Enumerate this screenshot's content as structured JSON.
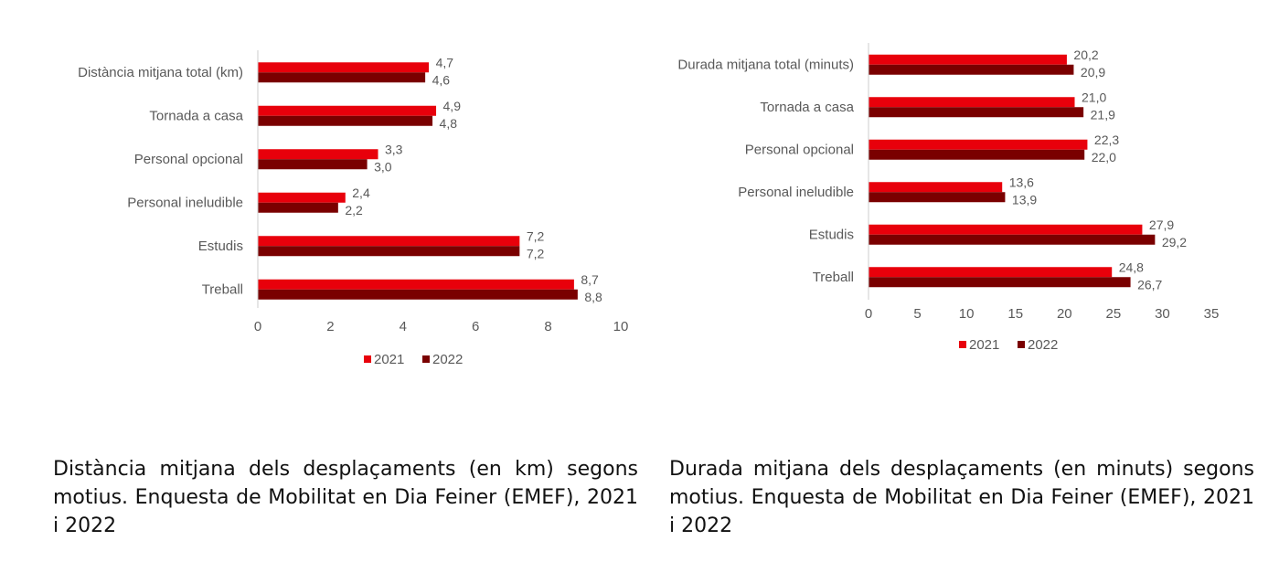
{
  "colors": {
    "y2021": "#e8000b",
    "y2022": "#7a0000",
    "axis": "#cccccc",
    "label": "#595959"
  },
  "chart_data": [
    {
      "type": "bar",
      "orientation": "horizontal",
      "categories": [
        "Distància mitjana total (km)",
        "Tornada a casa",
        "Personal opcional",
        "Personal ineludible",
        "Estudis",
        "Treball"
      ],
      "series": [
        {
          "name": "2021",
          "values": [
            4.7,
            4.9,
            3.3,
            2.4,
            7.2,
            8.7
          ],
          "labels": [
            "4,7",
            "4,9",
            "3,3",
            "2,4",
            "7,2",
            "8,7"
          ]
        },
        {
          "name": "2022",
          "values": [
            4.6,
            4.8,
            3.0,
            2.2,
            7.2,
            8.8
          ],
          "labels": [
            "4,6",
            "4,8",
            "3,0",
            "2,2",
            "7,2",
            "8,8"
          ]
        }
      ],
      "xlim": [
        0,
        10
      ],
      "ticks": [
        0,
        2,
        4,
        6,
        8,
        10
      ],
      "legend": "bottom",
      "caption": "Distància mitjana dels desplaçaments (en km) segons motius. Enquesta de Mobilitat en Dia Feiner (EMEF), 2021 i 2022"
    },
    {
      "type": "bar",
      "orientation": "horizontal",
      "categories": [
        "Durada mitjana total (minuts)",
        "Tornada a casa",
        "Personal opcional",
        "Personal ineludible",
        "Estudis",
        "Treball"
      ],
      "series": [
        {
          "name": "2021",
          "values": [
            20.2,
            21.0,
            22.3,
            13.6,
            27.9,
            24.8
          ],
          "labels": [
            "20,2",
            "21,0",
            "22,3",
            "13,6",
            "27,9",
            "24,8"
          ]
        },
        {
          "name": "2022",
          "values": [
            20.9,
            21.9,
            22.0,
            13.9,
            29.2,
            26.7
          ],
          "labels": [
            "20,9",
            "21,9",
            "22,0",
            "13,9",
            "29,2",
            "26,7"
          ]
        }
      ],
      "xlim": [
        0,
        35
      ],
      "ticks": [
        0,
        5,
        10,
        15,
        20,
        25,
        30,
        35
      ],
      "legend": "bottom",
      "caption": "Durada mitjana dels desplaçaments (en minuts) segons motius. Enquesta de Mobilitat en Dia Feiner (EMEF), 2021 i 2022"
    }
  ]
}
